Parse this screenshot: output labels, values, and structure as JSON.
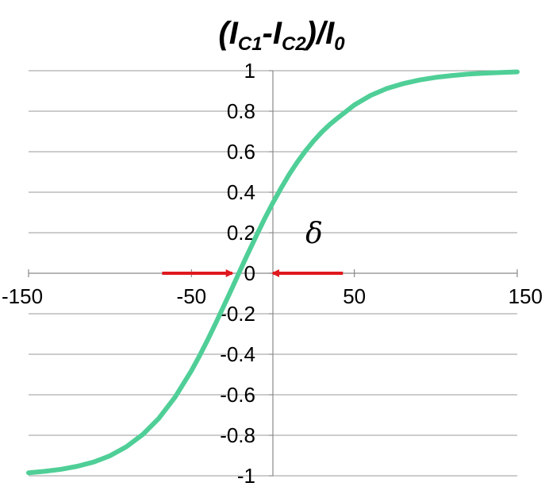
{
  "chart_data": {
    "type": "line",
    "title_parts": [
      "(I",
      "C1",
      "-I",
      "C2",
      ")/I",
      "0"
    ],
    "xlabel": "",
    "ylabel": "",
    "xlim": [
      -150,
      150
    ],
    "ylim": [
      -1,
      1
    ],
    "x_ticks": [
      -150,
      -50,
      50,
      150
    ],
    "x_tick_labels": [
      "-150",
      "-50",
      "50",
      "150"
    ],
    "y_ticks": [
      1,
      0.8,
      0.6,
      0.4,
      0.2,
      0,
      -0.2,
      -0.4,
      -0.6,
      -0.8,
      -1
    ],
    "y_tick_labels": [
      "1",
      "0.8",
      "0.6",
      "0.4",
      "0.2",
      "0",
      "-0.2",
      "-0.4",
      "-0.6",
      "-0.8",
      "-1"
    ],
    "grid": true,
    "series": [
      {
        "color": "#4fcf97",
        "x": [
          -150,
          -140,
          -130,
          -120,
          -110,
          -100,
          -90,
          -80,
          -70,
          -60,
          -50,
          -45,
          -40,
          -35,
          -30,
          -25,
          -20,
          -15,
          -10,
          -5,
          0,
          5,
          10,
          15,
          20,
          25,
          30,
          35,
          40,
          50,
          60,
          70,
          80,
          90,
          100,
          110,
          120,
          130,
          140,
          150
        ],
        "y": [
          -0.985,
          -0.978,
          -0.968,
          -0.953,
          -0.932,
          -0.901,
          -0.857,
          -0.797,
          -0.716,
          -0.611,
          -0.481,
          -0.407,
          -0.328,
          -0.245,
          -0.159,
          -0.072,
          0.016,
          0.103,
          0.188,
          0.27,
          0.348,
          0.42,
          0.488,
          0.549,
          0.604,
          0.653,
          0.697,
          0.735,
          0.768,
          0.831,
          0.878,
          0.912,
          0.936,
          0.954,
          0.967,
          0.976,
          0.983,
          0.988,
          0.991,
          0.994
        ]
      }
    ],
    "annotations": {
      "delta_label": "δ",
      "arrow_color": "#e0191e",
      "left_arrow": {
        "from_x": -68,
        "to_x": -25,
        "y": 0
      },
      "right_arrow": {
        "from_x": 43,
        "to_x": 0,
        "y": 0
      },
      "delta_position": {
        "x": 20,
        "y": 0.15
      }
    }
  }
}
